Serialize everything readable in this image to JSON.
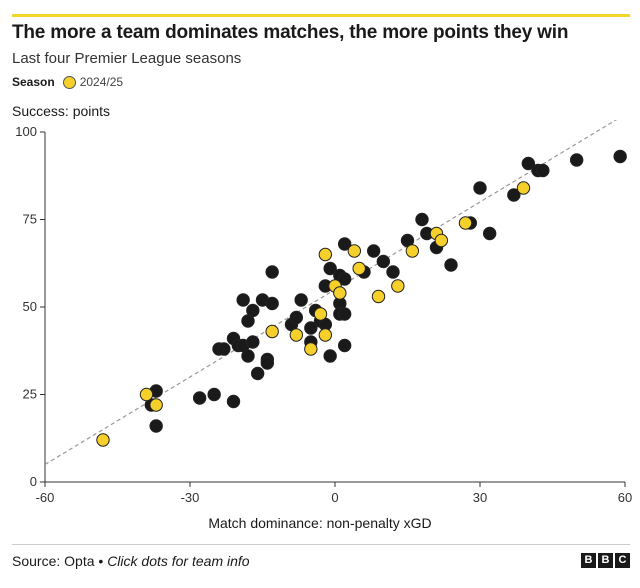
{
  "header": {
    "title": "The more a team dominates matches, the more points they win",
    "subtitle": "Last four Premier League seasons"
  },
  "legend": {
    "label": "Season",
    "entries": [
      {
        "label": "2024/25",
        "color": "#f5cf2a"
      }
    ]
  },
  "footer": {
    "source": "Source: Opta",
    "separator": " • ",
    "hint": "Click dots for team info",
    "logo": [
      "B",
      "B",
      "C"
    ]
  },
  "colors": {
    "accent": "#f2d72b",
    "highlight_dot": "#f5cf2a",
    "other_dot": "#1a1a1a",
    "trend_line": "#999999"
  },
  "chart_data": {
    "type": "scatter",
    "xlabel": "Match dominance: non-penalty xGD",
    "ylabel": "Success: points",
    "xlim": [
      -60,
      60
    ],
    "ylim": [
      0,
      100
    ],
    "xticks": [
      -60,
      -30,
      0,
      30,
      60
    ],
    "yticks": [
      0,
      25,
      50,
      75,
      100
    ],
    "trend_line": {
      "x": [
        -60,
        60
      ],
      "y": [
        5,
        105
      ]
    },
    "series": [
      {
        "name": "2024/25",
        "color": "#f5cf2a",
        "points": [
          {
            "x": -48,
            "y": 12
          },
          {
            "x": -39,
            "y": 25
          },
          {
            "x": -37,
            "y": 22
          },
          {
            "x": -13,
            "y": 43
          },
          {
            "x": -8,
            "y": 42
          },
          {
            "x": -5,
            "y": 38
          },
          {
            "x": -3,
            "y": 48
          },
          {
            "x": -2,
            "y": 65
          },
          {
            "x": -2,
            "y": 42
          },
          {
            "x": 0,
            "y": 56
          },
          {
            "x": 1,
            "y": 54
          },
          {
            "x": 4,
            "y": 66
          },
          {
            "x": 5,
            "y": 61
          },
          {
            "x": 9,
            "y": 53
          },
          {
            "x": 13,
            "y": 56
          },
          {
            "x": 16,
            "y": 66
          },
          {
            "x": 21,
            "y": 71
          },
          {
            "x": 22,
            "y": 69
          },
          {
            "x": 27,
            "y": 74
          },
          {
            "x": 39,
            "y": 84
          }
        ]
      },
      {
        "name": "",
        "color": "#1a1a1a",
        "points": [
          {
            "x": -37,
            "y": 26
          },
          {
            "x": -38,
            "y": 22
          },
          {
            "x": -37,
            "y": 16
          },
          {
            "x": -28,
            "y": 24
          },
          {
            "x": -25,
            "y": 25
          },
          {
            "x": -21,
            "y": 23
          },
          {
            "x": -24,
            "y": 38
          },
          {
            "x": -23,
            "y": 38
          },
          {
            "x": -21,
            "y": 41
          },
          {
            "x": -20,
            "y": 39
          },
          {
            "x": -19,
            "y": 39
          },
          {
            "x": -18,
            "y": 36
          },
          {
            "x": -18,
            "y": 46
          },
          {
            "x": -17,
            "y": 49
          },
          {
            "x": -19,
            "y": 52
          },
          {
            "x": -17,
            "y": 40
          },
          {
            "x": -16,
            "y": 31
          },
          {
            "x": -15,
            "y": 52
          },
          {
            "x": -14,
            "y": 35
          },
          {
            "x": -14,
            "y": 34
          },
          {
            "x": -13,
            "y": 51
          },
          {
            "x": -13,
            "y": 60
          },
          {
            "x": -9,
            "y": 45
          },
          {
            "x": -8,
            "y": 47
          },
          {
            "x": -7,
            "y": 52
          },
          {
            "x": -5,
            "y": 44
          },
          {
            "x": -5,
            "y": 40
          },
          {
            "x": -4,
            "y": 49
          },
          {
            "x": -3,
            "y": 46
          },
          {
            "x": -2,
            "y": 45
          },
          {
            "x": -2,
            "y": 56
          },
          {
            "x": -1,
            "y": 61
          },
          {
            "x": -1,
            "y": 36
          },
          {
            "x": 1,
            "y": 51
          },
          {
            "x": 1,
            "y": 48
          },
          {
            "x": 1,
            "y": 59
          },
          {
            "x": 2,
            "y": 58
          },
          {
            "x": 2,
            "y": 39
          },
          {
            "x": 2,
            "y": 48
          },
          {
            "x": 2,
            "y": 68
          },
          {
            "x": 6,
            "y": 60
          },
          {
            "x": 8,
            "y": 66
          },
          {
            "x": 10,
            "y": 63
          },
          {
            "x": 12,
            "y": 60
          },
          {
            "x": 15,
            "y": 69
          },
          {
            "x": 18,
            "y": 75
          },
          {
            "x": 19,
            "y": 71
          },
          {
            "x": 21,
            "y": 67
          },
          {
            "x": 24,
            "y": 62
          },
          {
            "x": 28,
            "y": 74
          },
          {
            "x": 30,
            "y": 84
          },
          {
            "x": 32,
            "y": 71
          },
          {
            "x": 37,
            "y": 82
          },
          {
            "x": 40,
            "y": 91
          },
          {
            "x": 42,
            "y": 89
          },
          {
            "x": 43,
            "y": 89
          },
          {
            "x": 50,
            "y": 92
          },
          {
            "x": 59,
            "y": 93
          }
        ]
      }
    ]
  }
}
